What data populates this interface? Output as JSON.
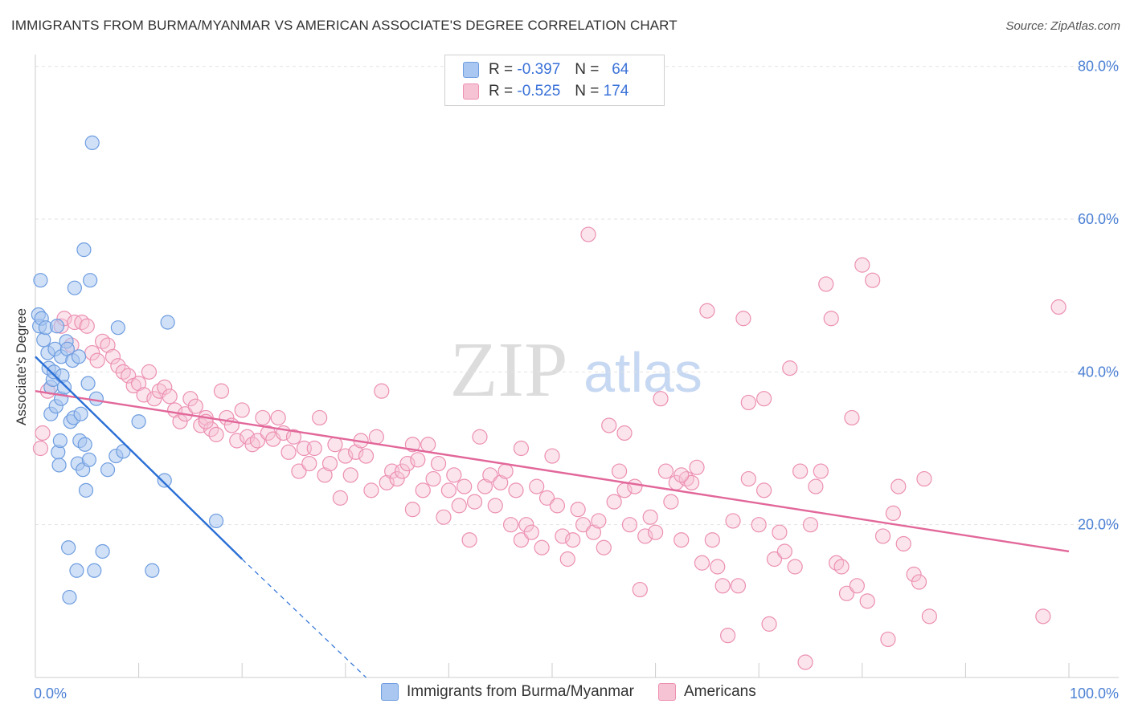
{
  "title": "IMMIGRANTS FROM BURMA/MYANMAR VS AMERICAN ASSOCIATE'S DEGREE CORRELATION CHART",
  "source": "Source: ZipAtlas.com",
  "watermark": {
    "zip": "ZIP",
    "atlas": "atlas"
  },
  "legend": {
    "rows": [
      {
        "r_label": "R = ",
        "r_value": "-0.397",
        "n_label": "N = ",
        "n_value": "64",
        "color": "#8ab4ec"
      },
      {
        "r_label": "R = ",
        "r_value": "-0.525",
        "n_label": "N = ",
        "n_value": "174",
        "color": "#f1a3bf"
      }
    ]
  },
  "bottom_legend": {
    "series1": "Immigrants from Burma/Myanmar",
    "series2": "Americans"
  },
  "colors": {
    "blue_fill": "#a9c7f0",
    "blue_stroke": "#6e9de0",
    "blue_line": "#2a6fd6",
    "pink_fill": "#f6c3d5",
    "pink_stroke": "#ec8fb1",
    "pink_line": "#e2679a",
    "tick_label": "#4a7fd4"
  },
  "chart_data": {
    "type": "scatter",
    "xlabel": "",
    "ylabel": "Associate's Degree",
    "xlim": [
      0,
      100
    ],
    "ylim": [
      0,
      85
    ],
    "x_tick_labels": [
      "0.0%",
      "100.0%"
    ],
    "y_ticks": [
      20,
      40,
      60,
      80
    ],
    "y_tick_labels": [
      "20.0%",
      "40.0%",
      "60.0%",
      "80.0%"
    ],
    "grid": "horizontal dashed",
    "legend_position": "top-center",
    "series": [
      {
        "name": "Immigrants from Burma/Myanmar",
        "R": -0.397,
        "N": 64,
        "trend": {
          "x": [
            0,
            20
          ],
          "y": [
            42.0,
            15.5
          ]
        },
        "trend_extension": {
          "x": [
            20,
            32
          ],
          "y": [
            15.5,
            0
          ]
        },
        "points": [
          [
            0.3,
            47.5
          ],
          [
            0.4,
            46.0
          ],
          [
            0.5,
            52.0
          ],
          [
            0.6,
            47.0
          ],
          [
            0.8,
            44.2
          ],
          [
            1.0,
            45.8
          ],
          [
            1.2,
            42.5
          ],
          [
            1.3,
            40.5
          ],
          [
            1.5,
            38.0
          ],
          [
            1.5,
            34.5
          ],
          [
            1.7,
            39.0
          ],
          [
            1.8,
            40.0
          ],
          [
            1.9,
            43.0
          ],
          [
            2.0,
            35.5
          ],
          [
            2.1,
            46.0
          ],
          [
            2.2,
            29.5
          ],
          [
            2.3,
            27.8
          ],
          [
            2.4,
            31.0
          ],
          [
            2.5,
            42.0
          ],
          [
            2.5,
            36.5
          ],
          [
            2.6,
            39.5
          ],
          [
            2.8,
            38.0
          ],
          [
            3.0,
            44.0
          ],
          [
            3.1,
            43.0
          ],
          [
            3.2,
            17.0
          ],
          [
            3.3,
            10.5
          ],
          [
            3.4,
            33.5
          ],
          [
            3.6,
            41.5
          ],
          [
            3.7,
            34.0
          ],
          [
            3.8,
            51.0
          ],
          [
            4.0,
            14.0
          ],
          [
            4.1,
            28.0
          ],
          [
            4.2,
            42.0
          ],
          [
            4.3,
            31.0
          ],
          [
            4.4,
            34.5
          ],
          [
            4.6,
            27.2
          ],
          [
            4.7,
            56.0
          ],
          [
            4.8,
            30.5
          ],
          [
            4.9,
            24.5
          ],
          [
            5.1,
            38.5
          ],
          [
            5.2,
            28.5
          ],
          [
            5.3,
            52.0
          ],
          [
            5.5,
            70.0
          ],
          [
            5.7,
            14.0
          ],
          [
            5.9,
            36.5
          ],
          [
            6.5,
            16.5
          ],
          [
            7.0,
            27.2
          ],
          [
            7.8,
            29.0
          ],
          [
            8.0,
            45.8
          ],
          [
            8.5,
            29.6
          ],
          [
            10.0,
            33.5
          ],
          [
            11.3,
            14.0
          ],
          [
            12.5,
            25.8
          ],
          [
            12.8,
            46.5
          ],
          [
            17.5,
            20.5
          ]
        ]
      },
      {
        "name": "Americans",
        "R": -0.525,
        "N": 174,
        "trend": {
          "x": [
            0,
            100
          ],
          "y": [
            37.5,
            16.5
          ]
        },
        "points": [
          [
            0.5,
            30.0
          ],
          [
            0.7,
            32.0
          ],
          [
            1.2,
            37.5
          ],
          [
            2.5,
            46.0
          ],
          [
            2.8,
            47.0
          ],
          [
            3.5,
            43.5
          ],
          [
            3.8,
            46.5
          ],
          [
            4.5,
            46.5
          ],
          [
            5.0,
            46.0
          ],
          [
            5.5,
            42.5
          ],
          [
            6.0,
            41.5
          ],
          [
            6.5,
            44.0
          ],
          [
            7.0,
            43.5
          ],
          [
            7.5,
            42.0
          ],
          [
            8.0,
            40.8
          ],
          [
            8.5,
            40.0
          ],
          [
            9.0,
            39.5
          ],
          [
            9.5,
            38.2
          ],
          [
            10.0,
            38.5
          ],
          [
            10.5,
            37.0
          ],
          [
            11.0,
            40.0
          ],
          [
            11.5,
            36.5
          ],
          [
            12.0,
            37.5
          ],
          [
            12.5,
            38.0
          ],
          [
            13.0,
            36.8
          ],
          [
            13.5,
            35.0
          ],
          [
            14.0,
            33.5
          ],
          [
            14.5,
            34.5
          ],
          [
            15.0,
            36.5
          ],
          [
            15.5,
            35.5
          ],
          [
            16.0,
            33.0
          ],
          [
            16.5,
            34.0
          ],
          [
            17.0,
            32.5
          ],
          [
            17.5,
            31.8
          ],
          [
            18.0,
            37.5
          ],
          [
            18.5,
            34.0
          ],
          [
            19.0,
            33.0
          ],
          [
            19.5,
            31.0
          ],
          [
            20.0,
            35.0
          ],
          [
            20.5,
            31.5
          ],
          [
            21.0,
            30.5
          ],
          [
            21.5,
            31.0
          ],
          [
            22.0,
            34.0
          ],
          [
            22.5,
            32.0
          ],
          [
            23.0,
            31.2
          ],
          [
            23.5,
            34.0
          ],
          [
            24.0,
            32.0
          ],
          [
            24.5,
            29.5
          ],
          [
            25.0,
            31.5
          ],
          [
            25.5,
            27.0
          ],
          [
            26.0,
            30.0
          ],
          [
            26.5,
            28.0
          ],
          [
            27.0,
            30.0
          ],
          [
            27.5,
            34.0
          ],
          [
            28.0,
            26.5
          ],
          [
            28.5,
            28.0
          ],
          [
            29.0,
            30.5
          ],
          [
            29.5,
            23.5
          ],
          [
            30.0,
            29.0
          ],
          [
            30.5,
            26.5
          ],
          [
            31.0,
            29.5
          ],
          [
            31.5,
            31.0
          ],
          [
            32.0,
            29.0
          ],
          [
            32.5,
            24.5
          ],
          [
            33.0,
            31.5
          ],
          [
            33.5,
            37.5
          ],
          [
            34.0,
            25.5
          ],
          [
            34.5,
            27.0
          ],
          [
            35.0,
            26.0
          ],
          [
            35.5,
            27.0
          ],
          [
            36.0,
            28.0
          ],
          [
            36.5,
            22.0
          ],
          [
            37.0,
            28.5
          ],
          [
            37.5,
            24.5
          ],
          [
            38.0,
            30.5
          ],
          [
            38.5,
            26.0
          ],
          [
            39.0,
            28.0
          ],
          [
            39.5,
            21.0
          ],
          [
            40.0,
            24.5
          ],
          [
            40.5,
            26.5
          ],
          [
            41.0,
            22.5
          ],
          [
            41.5,
            25.0
          ],
          [
            42.0,
            18.0
          ],
          [
            42.5,
            23.0
          ],
          [
            43.0,
            31.5
          ],
          [
            43.5,
            25.0
          ],
          [
            44.0,
            26.5
          ],
          [
            44.5,
            22.5
          ],
          [
            45.0,
            25.5
          ],
          [
            45.5,
            27.0
          ],
          [
            46.0,
            20.0
          ],
          [
            46.5,
            24.5
          ],
          [
            47.0,
            18.0
          ],
          [
            47.5,
            20.0
          ],
          [
            48.0,
            19.0
          ],
          [
            48.5,
            25.0
          ],
          [
            49.0,
            17.0
          ],
          [
            49.5,
            23.5
          ],
          [
            50.0,
            29.0
          ],
          [
            50.5,
            22.5
          ],
          [
            51.0,
            18.5
          ],
          [
            51.5,
            15.5
          ],
          [
            52.0,
            18.0
          ],
          [
            52.5,
            22.0
          ],
          [
            53.0,
            20.0
          ],
          [
            53.5,
            58.0
          ],
          [
            54.0,
            19.0
          ],
          [
            54.5,
            20.5
          ],
          [
            55.0,
            17.0
          ],
          [
            55.5,
            33.0
          ],
          [
            56.0,
            23.0
          ],
          [
            56.5,
            27.0
          ],
          [
            57.0,
            24.5
          ],
          [
            57.5,
            20.0
          ],
          [
            58.0,
            25.0
          ],
          [
            58.5,
            11.5
          ],
          [
            59.0,
            18.5
          ],
          [
            59.5,
            21.0
          ],
          [
            60.0,
            19.0
          ],
          [
            60.5,
            36.5
          ],
          [
            61.0,
            27.0
          ],
          [
            61.5,
            23.0
          ],
          [
            62.0,
            25.5
          ],
          [
            62.5,
            18.0
          ],
          [
            63.0,
            26.0
          ],
          [
            63.5,
            25.5
          ],
          [
            64.0,
            27.5
          ],
          [
            64.5,
            15.0
          ],
          [
            65.0,
            48.0
          ],
          [
            65.5,
            18.0
          ],
          [
            66.0,
            14.5
          ],
          [
            66.5,
            12.0
          ],
          [
            67.0,
            5.5
          ],
          [
            67.5,
            20.5
          ],
          [
            68.0,
            12.0
          ],
          [
            68.5,
            47.0
          ],
          [
            69.0,
            26.0
          ],
          [
            70.0,
            20.0
          ],
          [
            70.5,
            36.5
          ],
          [
            71.0,
            7.0
          ],
          [
            71.5,
            15.5
          ],
          [
            72.0,
            19.0
          ],
          [
            72.5,
            16.5
          ],
          [
            73.0,
            40.5
          ],
          [
            73.5,
            14.5
          ],
          [
            74.0,
            27.0
          ],
          [
            74.5,
            2.0
          ],
          [
            75.0,
            20.0
          ],
          [
            75.5,
            25.0
          ],
          [
            76.0,
            27.0
          ],
          [
            76.5,
            51.5
          ],
          [
            77.0,
            47.0
          ],
          [
            77.5,
            15.0
          ],
          [
            78.0,
            14.5
          ],
          [
            78.5,
            11.0
          ],
          [
            79.0,
            34.0
          ],
          [
            79.5,
            12.0
          ],
          [
            80.0,
            54.0
          ],
          [
            80.5,
            10.0
          ],
          [
            81.0,
            52.0
          ],
          [
            82.0,
            18.5
          ],
          [
            82.5,
            5.0
          ],
          [
            83.0,
            21.5
          ],
          [
            83.5,
            25.0
          ],
          [
            84.0,
            17.5
          ],
          [
            85.0,
            13.5
          ],
          [
            85.5,
            12.5
          ],
          [
            86.0,
            26.0
          ],
          [
            86.5,
            8.0
          ],
          [
            97.5,
            8.0
          ],
          [
            99.0,
            48.5
          ],
          [
            57.0,
            32.0
          ],
          [
            69.0,
            36.0
          ],
          [
            36.5,
            30.5
          ],
          [
            16.5,
            33.5
          ],
          [
            47.0,
            30.0
          ],
          [
            62.5,
            26.5
          ],
          [
            70.5,
            24.5
          ]
        ]
      }
    ]
  }
}
